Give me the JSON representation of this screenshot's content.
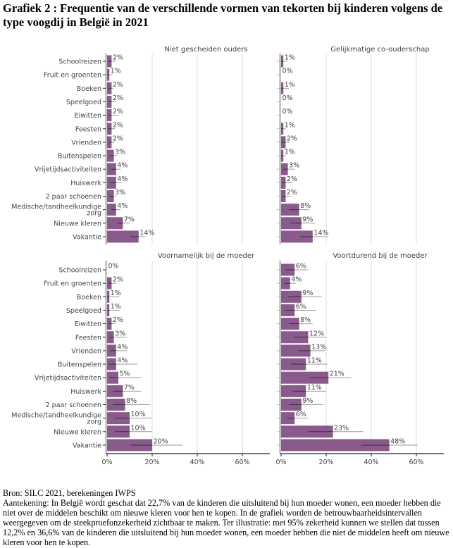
{
  "title": "Grafiek 2 : Frequentie van de verschillende vormen van tekorten bij kinderen volgens de type voogdij in België in 2021",
  "footer": {
    "source": "Bron: SILC 2021, berekeningen IWPS",
    "note": "Aantekening: In België wordt geschat dat 22,7% van de kinderen die uitsluitend bij hun moeder wonen, een moeder hebben die niet over de middelen beschikt om nieuwe kleren voor hen te kopen. In de grafiek worden de betrouwbaarheidsintervallen weergegeven om de steekproefonzekerheid zichtbaar te maken. Ter illustratie: met 95% zekerheid kunnen we stellen dat tussen 12,2% en 36,6% van de kinderen die uitsluitend bij hun moeder wonen, een moeder hebben die niet de middelen heeft om nieuwe kleren voor hen te kopen."
  },
  "colors": {
    "bar": "#8a5a8c",
    "grid": "#dddddd",
    "axis": "#222222",
    "text": "#444444",
    "errorbar": "#333333"
  },
  "chart_data": {
    "type": "bar",
    "orientation": "horizontal",
    "xlim": [
      0,
      70
    ],
    "x_ticks": [
      "0%",
      "20%",
      "40%",
      "60%"
    ],
    "x_tick_values": [
      0,
      20,
      40,
      60
    ],
    "grid": true,
    "categories": [
      "Schoolreizen",
      "Fruit en groenten",
      "Boeken",
      "Speelgoed",
      "Eiwitten",
      "Feesten",
      "Vrienden",
      "Buitenspelen",
      "Vrijetijdsactiviteiten",
      "Huiswerk",
      "2 paar schoenen",
      "Medische/tandheelkundige zorg",
      "Nieuwe kleren",
      "Vakantie"
    ],
    "panels": [
      {
        "title": "Niet gescheiden ouders",
        "values": [
          2,
          1,
          2,
          2,
          2,
          2,
          2,
          3,
          4,
          4,
          3,
          4,
          7,
          14
        ],
        "labels": [
          "2%",
          "1%",
          "2%",
          "2%",
          "2%",
          "2%",
          "2%",
          "3%",
          "4%",
          "4%",
          "3%",
          "4%",
          "7%",
          "14%"
        ],
        "ci": [
          [
            0.5,
            4
          ],
          [
            0.2,
            2.5
          ],
          [
            0.5,
            3
          ],
          [
            0.5,
            4
          ],
          [
            0.5,
            5
          ],
          [
            0.5,
            3.5
          ],
          [
            0.5,
            3.5
          ],
          [
            1,
            4.5
          ],
          [
            2,
            6
          ],
          [
            1.5,
            6.5
          ],
          [
            1,
            4
          ],
          [
            2,
            6
          ],
          [
            4.5,
            10
          ],
          [
            10.5,
            17
          ]
        ]
      },
      {
        "title": "Gelijkmatige co-ouderschap",
        "values": [
          1,
          0,
          1,
          0,
          0,
          1,
          2,
          1,
          3,
          2,
          2,
          8,
          9,
          14
        ],
        "labels": [
          "1%",
          "0%",
          "1%",
          "0%",
          "0%",
          "1%",
          "2%",
          "1%",
          "3%",
          "2%",
          "2%",
          "8%",
          "9%",
          "14%"
        ],
        "ci": [
          [
            0,
            3
          ],
          [
            0,
            0
          ],
          [
            0,
            3.5
          ],
          [
            0,
            0
          ],
          [
            0,
            0
          ],
          [
            0,
            2
          ],
          [
            0,
            4
          ],
          [
            0,
            2
          ],
          [
            1,
            6
          ],
          [
            0.5,
            5
          ],
          [
            0.5,
            4.5
          ],
          [
            3.5,
            12.5
          ],
          [
            4,
            15
          ],
          [
            8.5,
            21
          ]
        ]
      },
      {
        "title": "Voornamelijk bij de moeder",
        "values": [
          0,
          2,
          1,
          1,
          2,
          3,
          4,
          4,
          5,
          7,
          8,
          10,
          10,
          20
        ],
        "labels": [
          "0%",
          "2%",
          "1%",
          "1%",
          "2%",
          "3%",
          "4%",
          "4%",
          "5%",
          "7%",
          "8%",
          "10%",
          "10%",
          "20%"
        ],
        "ci": [
          [
            0,
            0
          ],
          [
            0.5,
            4
          ],
          [
            0.2,
            5.5
          ],
          [
            0.2,
            5.5
          ],
          [
            0.5,
            4
          ],
          [
            1,
            9
          ],
          [
            1.5,
            9
          ],
          [
            0.5,
            13.5
          ],
          [
            1,
            15.5
          ],
          [
            2.5,
            15
          ],
          [
            2.5,
            19
          ],
          [
            3.5,
            20
          ],
          [
            3.5,
            20
          ],
          [
            10.5,
            33.5
          ]
        ]
      },
      {
        "title": "Voortdurend bij de moeder",
        "values": [
          6,
          4,
          9,
          6,
          8,
          12,
          13,
          11,
          21,
          11,
          9,
          6,
          23,
          48
        ],
        "labels": [
          "6%",
          "4%",
          "9%",
          "6%",
          "8%",
          "12%",
          "13%",
          "11%",
          "21%",
          "11%",
          "9%",
          "6%",
          "23%",
          "48%"
        ],
        "ci": [
          [
            2,
            12
          ],
          [
            1.5,
            6.5
          ],
          [
            3,
            18
          ],
          [
            1.5,
            15.5
          ],
          [
            3.5,
            14
          ],
          [
            5.5,
            20
          ],
          [
            7.5,
            19.5
          ],
          [
            4.5,
            20.5
          ],
          [
            12.5,
            31
          ],
          [
            5,
            20
          ],
          [
            3.5,
            18.5
          ],
          [
            2.5,
            12
          ],
          [
            12,
            36.5
          ],
          [
            35.5,
            60.5
          ]
        ]
      }
    ]
  }
}
